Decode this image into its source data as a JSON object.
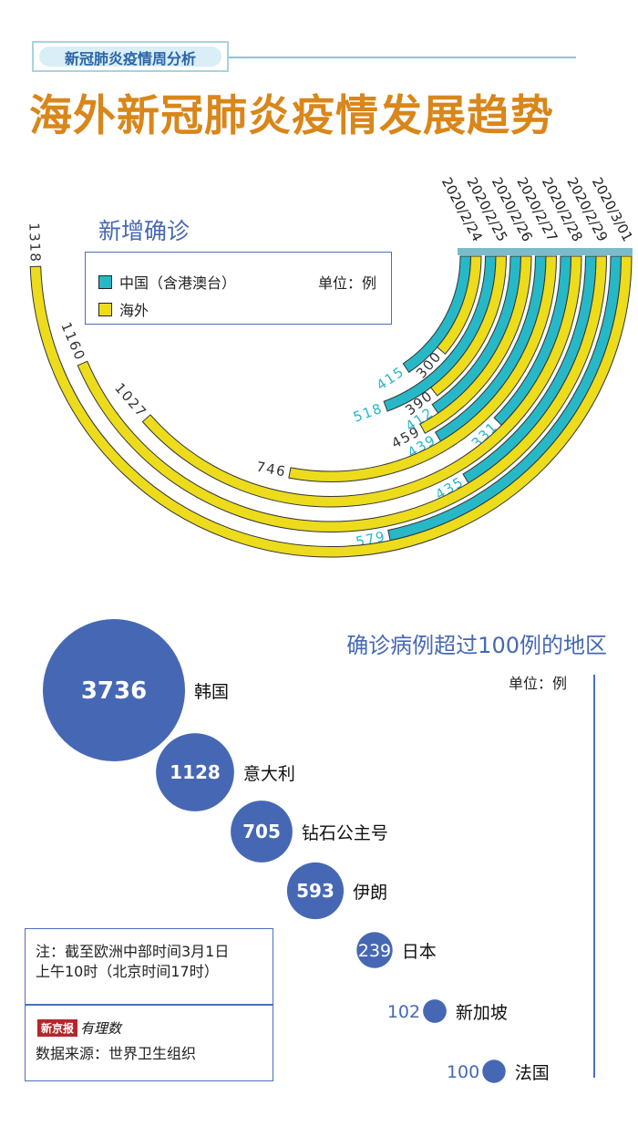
{
  "header": {
    "kicker": "新冠肺炎疫情周分析",
    "title": "海外新冠肺炎疫情发展趋势"
  },
  "colors": {
    "china": "#27b8c8",
    "overseas": "#ecdc1c",
    "accent": "#4668b4",
    "title": "#d9861a"
  },
  "legend": {
    "title": "新增确诊",
    "china_label": "中国（含港澳台）",
    "overseas_label": "海外",
    "unit": "单位：例"
  },
  "bubble_header": {
    "title": "确诊病例超过100例的地区",
    "unit": "单位：例"
  },
  "note": {
    "line1": "注：截至欧洲中部时间3月1日",
    "line2": "上午10时（北京时间17时）",
    "logo_brand": "新京报",
    "logo_sub": "有理数",
    "source": "数据来源：世界卫生组织"
  },
  "chart_data": [
    {
      "type": "bar",
      "subtype": "radial-arc",
      "title": "新增确诊",
      "categories": [
        "2020/2/24",
        "2020/2/25",
        "2020/2/26",
        "2020/2/27",
        "2020/2/28",
        "2020/2/29",
        "2020/3/01"
      ],
      "series": [
        {
          "name": "中国（含港澳台）",
          "values": [
            415,
            518,
            412,
            439,
            331,
            435,
            579
          ]
        },
        {
          "name": "海外",
          "values": [
            300,
            390,
            459,
            746,
            1027,
            1160,
            1318
          ]
        }
      ],
      "unit": "例"
    },
    {
      "type": "bubble",
      "title": "确诊病例超过100例的地区",
      "categories": [
        "韩国",
        "意大利",
        "钻石公主号",
        "伊朗",
        "日本",
        "新加坡",
        "法国"
      ],
      "values": [
        3736,
        1128,
        705,
        593,
        239,
        102,
        100
      ],
      "unit": "例"
    }
  ]
}
